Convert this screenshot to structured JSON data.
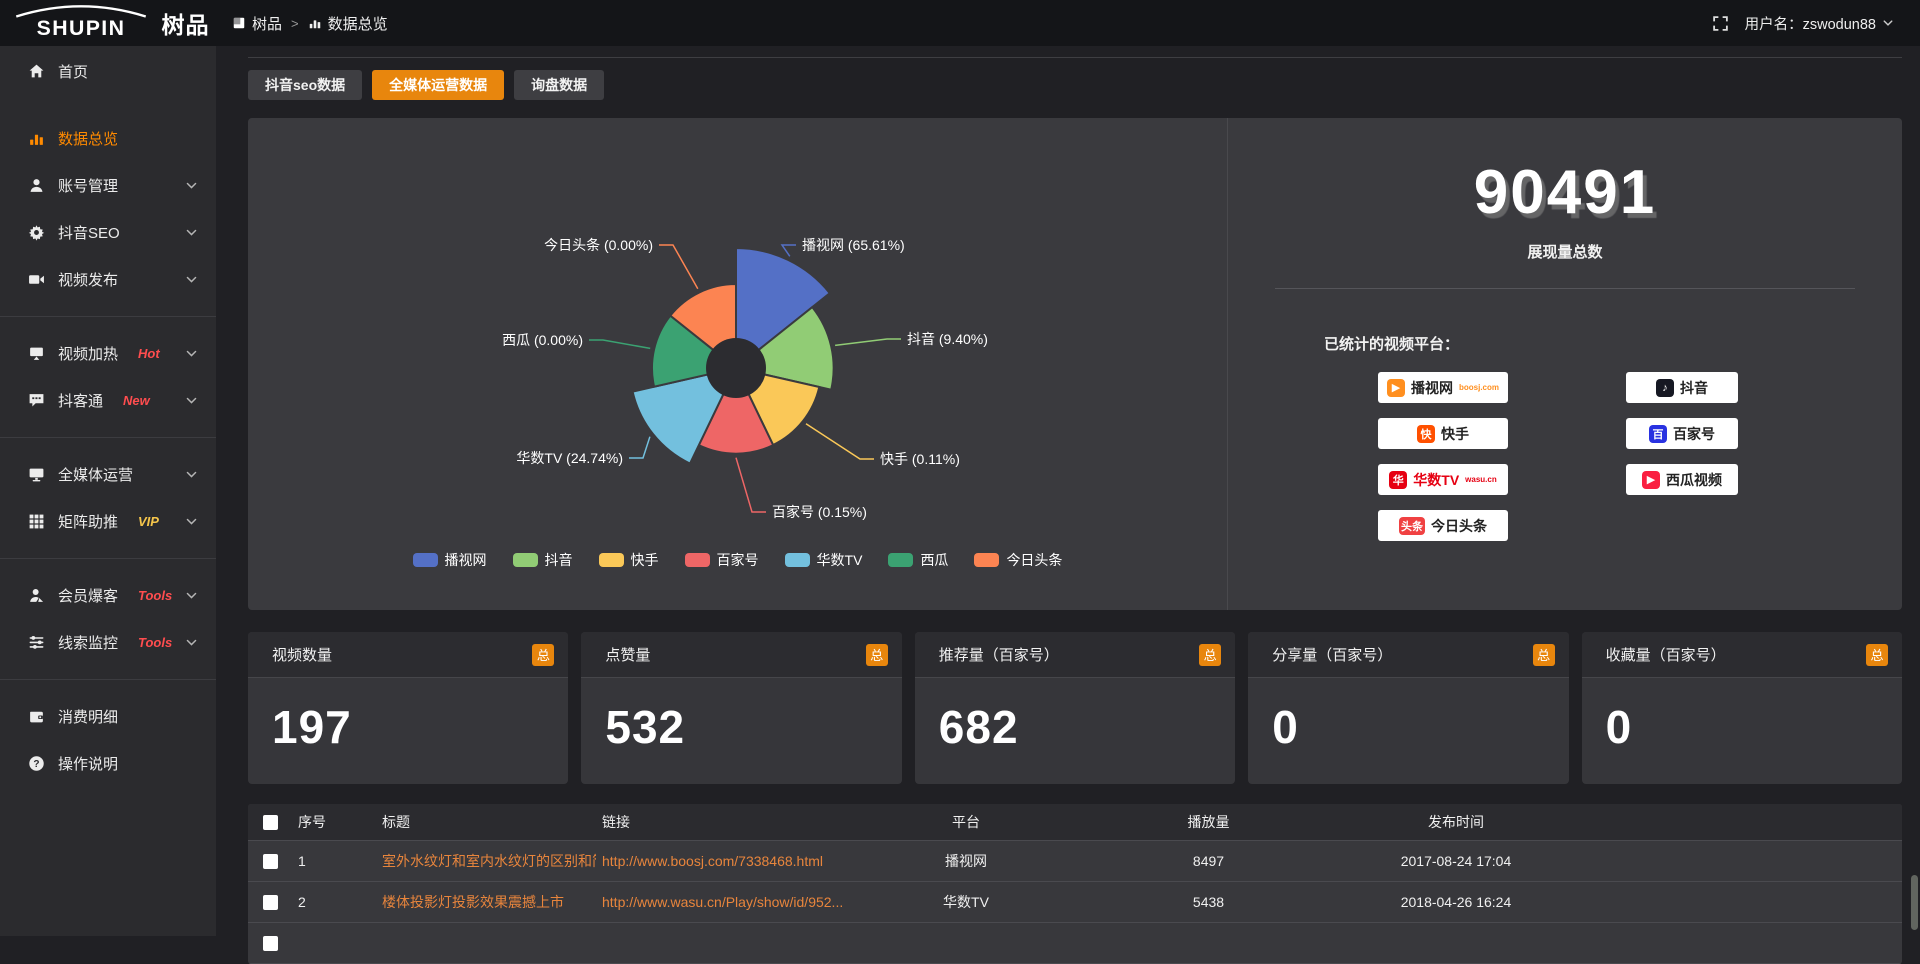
{
  "meta": {
    "accent_orange": "#e8860d",
    "sidebar_active_orange": "#ff8a00",
    "link_orange": "#e8853c",
    "tag_red": "#ff4d4f",
    "tag_gold": "#f6c64b"
  },
  "header": {
    "logo_text": "SHUPIN",
    "logo_cn": "树品",
    "breadcrumb": [
      {
        "label": "树品"
      },
      {
        "label": "数据总览"
      }
    ],
    "breadcrumb_separator": ">",
    "user_label": "用户名：zswodun88"
  },
  "sidebar": {
    "items": [
      {
        "id": "home",
        "label": "首页",
        "icon": "home",
        "active": false,
        "chevron": false
      },
      {
        "id": "data-overview",
        "label": "数据总览",
        "icon": "bars",
        "active": true,
        "chevron": false
      },
      {
        "id": "account-management",
        "label": "账号管理",
        "icon": "user",
        "chevron": true
      },
      {
        "id": "douyin-seo",
        "label": "抖音SEO",
        "icon": "gear",
        "chevron": true
      },
      {
        "id": "video-publish",
        "label": "视频发布",
        "icon": "video",
        "chevron": true,
        "group_end": true
      },
      {
        "id": "video-heating",
        "label": "视频加热",
        "icon": "screen",
        "chevron": true,
        "tag": {
          "text": "Hot",
          "color": "#ff4d4f"
        }
      },
      {
        "id": "douketong",
        "label": "抖客通",
        "icon": "chat",
        "chevron": true,
        "tag": {
          "text": "New",
          "color": "#ff4d4f"
        },
        "group_end": true
      },
      {
        "id": "all-media-operation",
        "label": "全媒体运营",
        "icon": "monitor",
        "chevron": true
      },
      {
        "id": "matrix-boost",
        "label": "矩阵助推",
        "icon": "grid",
        "chevron": true,
        "tag": {
          "text": "VIP",
          "color": "#f6c64b"
        },
        "group_end": true
      },
      {
        "id": "member-baoke",
        "label": "会员爆客",
        "icon": "member",
        "chevron": true,
        "tag": {
          "text": "Tools",
          "color": "#ff4d4f"
        }
      },
      {
        "id": "clue-monitoring",
        "label": "线索监控",
        "icon": "sliders",
        "chevron": true,
        "tag": {
          "text": "Tools",
          "color": "#ff4d4f"
        },
        "group_end": true
      },
      {
        "id": "consumption-details",
        "label": "消费明细",
        "icon": "wallet",
        "chevron": false
      },
      {
        "id": "operation-guide",
        "label": "操作说明",
        "icon": "question",
        "chevron": false
      }
    ]
  },
  "tabs": [
    {
      "id": "douyin-seo-data",
      "label": "抖音seo数据",
      "active": false
    },
    {
      "id": "all-media-operation-data",
      "label": "全媒体运营数据",
      "active": true
    },
    {
      "id": "inquiry-data",
      "label": "询盘数据",
      "active": false
    }
  ],
  "chart_data": {
    "type": "pie",
    "subtype": "nightingale-rose",
    "labels": [
      "播视网",
      "抖音",
      "快手",
      "百家号",
      "华数TV",
      "西瓜",
      "今日头条"
    ],
    "values": [
      65.61,
      9.4,
      0.11,
      0.15,
      24.74,
      0.0,
      0.0
    ],
    "value_unit": "%",
    "label_format": "{name} ({value}%)",
    "colors": [
      "#5470c6",
      "#91cc75",
      "#fac858",
      "#ee6666",
      "#73c0de",
      "#3ba272",
      "#fc8452"
    ],
    "legend": [
      "播视网",
      "抖音",
      "快手",
      "百家号",
      "华数TV",
      "西瓜",
      "今日头条"
    ],
    "legend_position": "bottom",
    "donut_hole": true
  },
  "summary": {
    "total_value": "90491",
    "total_label": "展现量总数"
  },
  "platforms": {
    "label": "已统计的视频平台：",
    "items": [
      {
        "name": "播视网",
        "sub": "boosj.com",
        "sub_color": "#ff8f1f",
        "icon_text": "▶",
        "icon_color": "#ff8f1f",
        "col": 1
      },
      {
        "name": "快手",
        "icon_text": "快",
        "icon_color": "#ff5000",
        "col": 1
      },
      {
        "name": "华数TV",
        "sub": "wasu.cn",
        "sub_color": "#e60012",
        "name_color": "#e60012",
        "icon_text": "华",
        "icon_color": "#e60012",
        "col": 1
      },
      {
        "name": "今日头条",
        "icon_text": "头条",
        "icon_color": "#f04142",
        "col": 1
      },
      {
        "name": "抖音",
        "icon_text": "♪",
        "icon_color": "#161823",
        "col": 2
      },
      {
        "name": "百家号",
        "icon_text": "百",
        "icon_color": "#2932e1",
        "col": 2
      },
      {
        "name": "西瓜视频",
        "icon_text": "▶",
        "icon_color": "#fa1f41",
        "col": 2
      }
    ]
  },
  "stat_cards": [
    {
      "title": "视频数量",
      "badge": "总",
      "value": "197"
    },
    {
      "title": "点赞量",
      "badge": "总",
      "value": "532"
    },
    {
      "title": "推荐量（百家号）",
      "badge": "总",
      "value": "682"
    },
    {
      "title": "分享量（百家号）",
      "badge": "总",
      "value": "0"
    },
    {
      "title": "收藏量（百家号）",
      "badge": "总",
      "value": "0"
    }
  ],
  "table": {
    "columns": [
      "",
      "序号",
      "标题",
      "链接",
      "平台",
      "播放量",
      "发布时间"
    ],
    "rows": [
      {
        "id": "1",
        "title": "室外水纹灯和室内水纹灯的区别和简介",
        "link": "http://www.boosj.com/7338468.html",
        "platform": "播视网",
        "plays": "8497",
        "time": "2017-08-24 17:04"
      },
      {
        "id": "2",
        "title": "楼体投影灯投影效果震撼上市",
        "link": "http://www.wasu.cn/Play/show/id/952...",
        "platform": "华数TV",
        "plays": "5438",
        "time": "2018-04-26 16:24"
      },
      {
        "id": "",
        "title": "",
        "link": "",
        "platform": "",
        "plays": "",
        "time": ""
      }
    ]
  }
}
